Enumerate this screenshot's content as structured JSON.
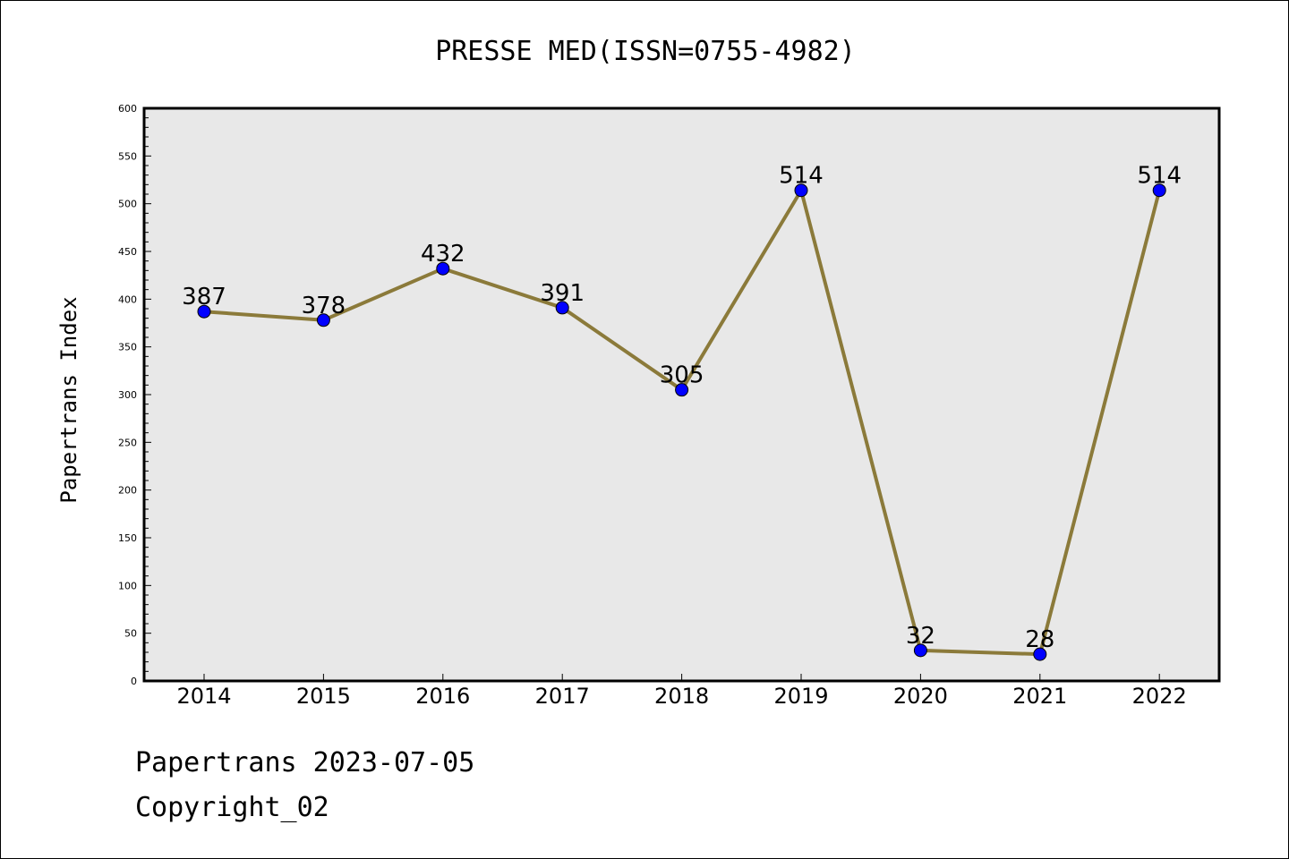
{
  "chart_data": {
    "type": "line",
    "title": "PRESSE MED(ISSN=0755-4982)",
    "xlabel": "",
    "ylabel": "Papertrans Index",
    "categories": [
      "2014",
      "2015",
      "2016",
      "2017",
      "2018",
      "2019",
      "2020",
      "2021",
      "2022"
    ],
    "series": [
      {
        "values": [
          387,
          378,
          432,
          391,
          305,
          514,
          32,
          28,
          514
        ],
        "data_labels": [
          "387",
          "378",
          "432",
          "391",
          "305",
          "514",
          "32",
          "28",
          "514"
        ]
      }
    ],
    "ylim": [
      0,
      600
    ],
    "yticks": [
      "0",
      "50",
      "100",
      "150",
      "200",
      "250",
      "300",
      "350",
      "400",
      "450",
      "500",
      "550",
      "600"
    ],
    "grid": false,
    "legend": "none",
    "colors": {
      "line": "#8B7A3A",
      "marker": "#0000FF",
      "plot_background": "#E8E8E8"
    }
  },
  "footer": {
    "line1": "Papertrans 2023-07-05",
    "line2": "Copyright_02"
  }
}
